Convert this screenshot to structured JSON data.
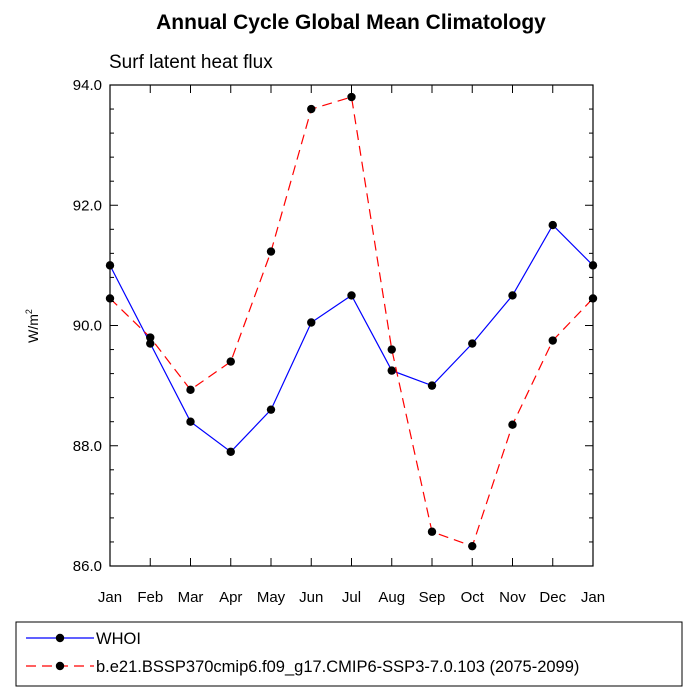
{
  "chart_data": {
    "type": "line",
    "title": "Annual Cycle Global Mean Climatology",
    "subtitle": "Surf latent heat flux",
    "ylabel": "W/m",
    "ylabel_superscript": "2",
    "categories": [
      "Jan",
      "Feb",
      "Mar",
      "Apr",
      "May",
      "Jun",
      "Jul",
      "Aug",
      "Sep",
      "Oct",
      "Nov",
      "Dec",
      "Jan"
    ],
    "yticks": [
      "86.0",
      "88.0",
      "90.0",
      "92.0",
      "94.0"
    ],
    "ylim": [
      86.0,
      94.0
    ],
    "grid": false,
    "legend_position": "bottom",
    "series": [
      {
        "name": "WHOI",
        "color": "#0000ff",
        "line_style": "solid",
        "marker": "filled-circle",
        "values": [
          91.0,
          89.7,
          88.4,
          87.9,
          88.6,
          90.05,
          90.5,
          89.25,
          89.0,
          89.7,
          90.5,
          91.67,
          91.0
        ]
      },
      {
        "name": "b.e21.BSSP370cmip6.f09_g17.CMIP6-SSP3-7.0.103 (2075-2099)",
        "color": "#ff0000",
        "line_style": "dashed",
        "marker": "filled-circle",
        "values": [
          90.45,
          89.8,
          88.93,
          89.4,
          91.23,
          93.6,
          93.8,
          89.6,
          86.57,
          86.33,
          88.35,
          89.75,
          90.45
        ]
      }
    ]
  }
}
